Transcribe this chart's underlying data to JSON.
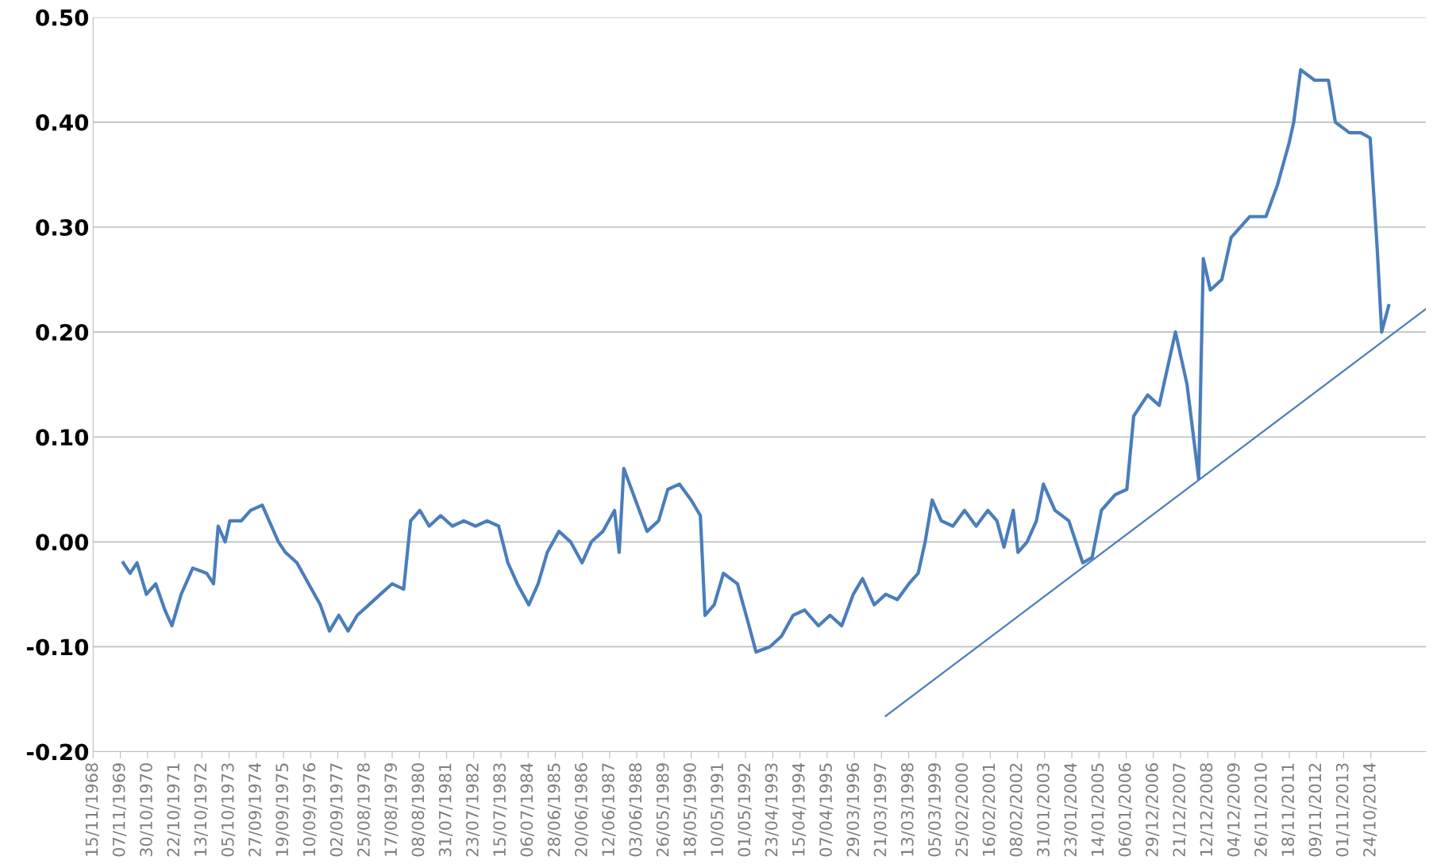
{
  "chart_data": {
    "type": "line",
    "ylim": [
      -0.2,
      0.5
    ],
    "yticks": [
      {
        "value": -0.2,
        "label": "-0.20"
      },
      {
        "value": -0.1,
        "label": "-0.10"
      },
      {
        "value": 0,
        "label": "0.00"
      },
      {
        "value": 0.1,
        "label": "0.10"
      },
      {
        "value": 0.2,
        "label": "0.20"
      },
      {
        "value": 0.3,
        "label": "0.30"
      },
      {
        "value": 0.4,
        "label": "0.40"
      },
      {
        "value": 0.5,
        "label": "0.50"
      }
    ],
    "xlim": [
      "1968-11-15",
      "2016-10"
    ],
    "xticks": [
      {
        "value": "1968-11-15",
        "label": "15/11/1968"
      },
      {
        "value": "1969-11-07",
        "label": "07/11/1969"
      },
      {
        "value": "1970-10-30",
        "label": "30/10/1970"
      },
      {
        "value": "1971-10-22",
        "label": "22/10/1971"
      },
      {
        "value": "1972-10-13",
        "label": "13/10/1972"
      },
      {
        "value": "1973-10-05",
        "label": "05/10/1973"
      },
      {
        "value": "1974-09-27",
        "label": "27/09/1974"
      },
      {
        "value": "1975-09-19",
        "label": "19/09/1975"
      },
      {
        "value": "1976-09-10",
        "label": "10/09/1976"
      },
      {
        "value": "1977-09-02",
        "label": "02/09/1977"
      },
      {
        "value": "1978-08-25",
        "label": "25/08/1978"
      },
      {
        "value": "1979-08-17",
        "label": "17/08/1979"
      },
      {
        "value": "1980-08-08",
        "label": "08/08/1980"
      },
      {
        "value": "1981-07-31",
        "label": "31/07/1981"
      },
      {
        "value": "1982-07-23",
        "label": "23/07/1982"
      },
      {
        "value": "1983-07-15",
        "label": "15/07/1983"
      },
      {
        "value": "1984-07-06",
        "label": "06/07/1984"
      },
      {
        "value": "1985-06-28",
        "label": "28/06/1985"
      },
      {
        "value": "1986-06-20",
        "label": "20/06/1986"
      },
      {
        "value": "1987-06-12",
        "label": "12/06/1987"
      },
      {
        "value": "1988-06-03",
        "label": "03/06/1988"
      },
      {
        "value": "1989-05-26",
        "label": "26/05/1989"
      },
      {
        "value": "1990-05-18",
        "label": "18/05/1990"
      },
      {
        "value": "1991-05-10",
        "label": "10/05/1991"
      },
      {
        "value": "1992-05-01",
        "label": "01/05/1992"
      },
      {
        "value": "1993-04-23",
        "label": "23/04/1993"
      },
      {
        "value": "1994-04-15",
        "label": "15/04/1994"
      },
      {
        "value": "1995-04-07",
        "label": "07/04/1995"
      },
      {
        "value": "1996-03-29",
        "label": "29/03/1996"
      },
      {
        "value": "1997-03-21",
        "label": "21/03/1997"
      },
      {
        "value": "1998-03-13",
        "label": "13/03/1998"
      },
      {
        "value": "1999-03-05",
        "label": "05/03/1999"
      },
      {
        "value": "2000-02-25",
        "label": "25/02/2000"
      },
      {
        "value": "2001-02-16",
        "label": "16/02/2001"
      },
      {
        "value": "2002-02-08",
        "label": "08/02/2002"
      },
      {
        "value": "2003-01-31",
        "label": "31/01/2003"
      },
      {
        "value": "2004-01-23",
        "label": "23/01/2004"
      },
      {
        "value": "2005-01-14",
        "label": "14/01/2005"
      },
      {
        "value": "2006-01-06",
        "label": "06/01/2006"
      },
      {
        "value": "2006-12-29",
        "label": "29/12/2006"
      },
      {
        "value": "2007-12-21",
        "label": "21/12/2007"
      },
      {
        "value": "2008-12-12",
        "label": "12/12/2008"
      },
      {
        "value": "2009-12-04",
        "label": "04/12/2009"
      },
      {
        "value": "2010-11-26",
        "label": "26/11/2010"
      },
      {
        "value": "2011-11-18",
        "label": "18/11/2011"
      },
      {
        "value": "2012-11-09",
        "label": "09/11/2012"
      },
      {
        "value": "2013-11-01",
        "label": "01/11/2013"
      },
      {
        "value": "2014-10-24",
        "label": "24/10/2014"
      }
    ],
    "grid": "y",
    "legend": false,
    "marker": "none",
    "line_style": "solid",
    "series": [
      {
        "color": "#4a7ebb",
        "x": [
          "1969-12",
          "1970-03",
          "1970-06",
          "1970-10",
          "1971-02",
          "1971-06",
          "1971-09",
          "1972-01",
          "1972-06",
          "1972-12",
          "1973-03",
          "1973-05",
          "1973-08",
          "1973-10",
          "1974-03",
          "1974-07",
          "1974-12",
          "1975-03",
          "1975-07",
          "1975-10",
          "1976-03",
          "1976-08",
          "1977-01",
          "1977-05",
          "1977-09",
          "1978-01",
          "1978-05",
          "1978-10",
          "1979-03",
          "1979-08",
          "1980-01",
          "1980-04",
          "1980-08",
          "1980-12",
          "1981-05",
          "1981-10",
          "1982-03",
          "1982-08",
          "1983-01",
          "1983-06",
          "1983-10",
          "1984-02",
          "1984-07",
          "1984-11",
          "1985-03",
          "1985-08",
          "1986-01",
          "1986-06",
          "1986-10",
          "1987-03",
          "1987-08",
          "1987-10",
          "1987-12",
          "1988-05",
          "1988-10",
          "1989-03",
          "1989-07",
          "1989-12",
          "1990-05",
          "1990-09",
          "1990-11",
          "1991-03",
          "1991-07",
          "1992-01",
          "1992-06",
          "1992-09",
          "1993-03",
          "1993-08",
          "1994-01",
          "1994-06",
          "1994-12",
          "1995-05",
          "1995-10",
          "1996-03",
          "1996-07",
          "1996-12",
          "1997-05",
          "1997-10",
          "1998-03",
          "1998-07",
          "1998-10",
          "1999-01",
          "1999-05",
          "1999-10",
          "2000-03",
          "2000-08",
          "2001-01",
          "2001-05",
          "2001-08",
          "2001-12",
          "2002-02",
          "2002-06",
          "2002-10",
          "2003-01",
          "2003-06",
          "2003-12",
          "2004-06",
          "2004-10",
          "2005-02",
          "2005-08",
          "2006-01",
          "2006-04",
          "2006-10",
          "2007-03",
          "2007-08",
          "2007-10",
          "2008-03",
          "2008-08",
          "2008-10",
          "2009-01",
          "2009-06",
          "2009-10",
          "2010-06",
          "2011-01",
          "2011-06",
          "2011-11",
          "2012-01",
          "2012-04",
          "2012-10",
          "2013-04",
          "2013-07",
          "2014-01",
          "2014-06",
          "2014-10",
          "2015-01",
          "2015-03",
          "2015-06"
        ],
        "values": [
          -0.02,
          -0.03,
          -0.02,
          -0.05,
          -0.04,
          -0.065,
          -0.08,
          -0.05,
          -0.025,
          -0.03,
          -0.04,
          0.015,
          0.0,
          0.02,
          0.02,
          0.03,
          0.035,
          0.02,
          0.0,
          -0.01,
          -0.02,
          -0.04,
          -0.06,
          -0.085,
          -0.07,
          -0.085,
          -0.07,
          -0.06,
          -0.05,
          -0.04,
          -0.045,
          0.02,
          0.03,
          0.015,
          0.025,
          0.015,
          0.02,
          0.015,
          0.02,
          0.015,
          -0.02,
          -0.04,
          -0.06,
          -0.04,
          -0.01,
          0.01,
          0.0,
          -0.02,
          0.0,
          0.01,
          0.03,
          -0.01,
          0.07,
          0.04,
          0.01,
          0.02,
          0.05,
          0.055,
          0.04,
          0.025,
          -0.07,
          -0.06,
          -0.03,
          -0.04,
          -0.08,
          -0.105,
          -0.1,
          -0.09,
          -0.07,
          -0.065,
          -0.08,
          -0.07,
          -0.08,
          -0.05,
          -0.035,
          -0.06,
          -0.05,
          -0.055,
          -0.04,
          -0.03,
          0.0,
          0.04,
          0.02,
          0.015,
          0.03,
          0.015,
          0.03,
          0.02,
          -0.005,
          0.03,
          -0.01,
          0.0,
          0.02,
          0.055,
          0.03,
          0.02,
          -0.02,
          -0.015,
          0.03,
          0.045,
          0.05,
          0.12,
          0.14,
          0.13,
          0.18,
          0.2,
          0.15,
          0.06,
          0.27,
          0.24,
          0.25,
          0.29,
          0.31,
          0.31,
          0.34,
          0.38,
          0.4,
          0.45,
          0.44,
          0.44,
          0.4,
          0.39,
          0.39,
          0.385,
          0.28,
          0.2,
          0.225
        ]
      },
      {
        "type": "line",
        "color": "#4a7ebb",
        "x": [
          "1997-05",
          "2016-10"
        ],
        "values": [
          -0.166,
          0.222
        ]
      }
    ]
  }
}
